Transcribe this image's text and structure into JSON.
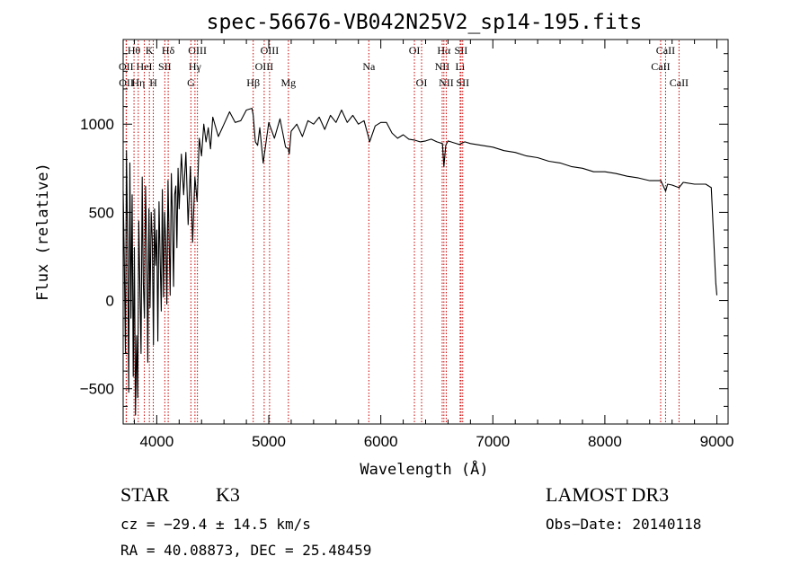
{
  "chart_data": {
    "type": "line",
    "title": "spec-56676-VB042N25V2_sp14-195.fits",
    "xlabel": "Wavelength (Å)",
    "ylabel": "Flux (relative)",
    "xlim": [
      3700,
      9100
    ],
    "ylim": [
      -700,
      1480
    ],
    "xticks": [
      4000,
      5000,
      6000,
      7000,
      8000,
      9000
    ],
    "yticks": [
      -500,
      0,
      500,
      1000
    ],
    "series": [
      {
        "name": "spectrum",
        "x": [
          3700,
          3710,
          3720,
          3730,
          3740,
          3750,
          3760,
          3770,
          3780,
          3790,
          3800,
          3810,
          3820,
          3830,
          3840,
          3850,
          3860,
          3870,
          3880,
          3890,
          3900,
          3910,
          3920,
          3930,
          3940,
          3950,
          3960,
          3970,
          3980,
          3990,
          4000,
          4010,
          4020,
          4030,
          4040,
          4050,
          4060,
          4070,
          4080,
          4090,
          4100,
          4110,
          4120,
          4130,
          4140,
          4150,
          4160,
          4170,
          4180,
          4190,
          4200,
          4220,
          4240,
          4260,
          4280,
          4300,
          4320,
          4340,
          4360,
          4380,
          4400,
          4420,
          4440,
          4460,
          4480,
          4500,
          4550,
          4600,
          4650,
          4700,
          4750,
          4800,
          4850,
          4861,
          4880,
          4900,
          4920,
          4950,
          5000,
          5050,
          5100,
          5150,
          5175,
          5183,
          5200,
          5250,
          5300,
          5350,
          5400,
          5450,
          5500,
          5550,
          5600,
          5650,
          5700,
          5750,
          5800,
          5850,
          5893,
          5900,
          5950,
          6000,
          6050,
          6100,
          6150,
          6200,
          6250,
          6300,
          6350,
          6400,
          6450,
          6500,
          6550,
          6563,
          6580,
          6600,
          6650,
          6700,
          6750,
          6800,
          6900,
          7000,
          7100,
          7200,
          7300,
          7400,
          7500,
          7600,
          7700,
          7800,
          7900,
          8000,
          8100,
          8200,
          8300,
          8400,
          8500,
          8542,
          8560,
          8600,
          8662,
          8700,
          8800,
          8900,
          8950,
          8990,
          9000
        ],
        "y": [
          620,
          250,
          -300,
          850,
          300,
          -520,
          780,
          -100,
          600,
          -430,
          300,
          -650,
          -200,
          -550,
          450,
          50,
          -300,
          700,
          100,
          -100,
          650,
          300,
          -350,
          520,
          -40,
          500,
          350,
          -250,
          520,
          200,
          400,
          -230,
          560,
          250,
          -60,
          630,
          20,
          500,
          330,
          -20,
          680,
          360,
          30,
          720,
          480,
          80,
          600,
          650,
          300,
          750,
          520,
          830,
          600,
          840,
          430,
          760,
          330,
          700,
          560,
          920,
          820,
          1000,
          900,
          980,
          860,
          1040,
          930,
          1000,
          1070,
          1010,
          1020,
          1080,
          1090,
          1050,
          900,
          880,
          980,
          780,
          1010,
          920,
          1030,
          870,
          860,
          830,
          960,
          1000,
          930,
          1020,
          1000,
          1040,
          970,
          1050,
          1010,
          1080,
          1010,
          1050,
          1000,
          1020,
          920,
          900,
          990,
          1010,
          1010,
          950,
          920,
          940,
          915,
          910,
          900,
          905,
          915,
          900,
          890,
          760,
          880,
          905,
          895,
          885,
          900,
          890,
          880,
          870,
          850,
          840,
          820,
          810,
          790,
          780,
          760,
          750,
          730,
          730,
          720,
          705,
          695,
          680,
          680,
          620,
          660,
          655,
          640,
          670,
          660,
          660,
          640,
          100,
          30
        ]
      }
    ],
    "line_markers": [
      {
        "label": "Hθ",
        "wavelength": 3797,
        "row": 1
      },
      {
        "label": "OII",
        "wavelength": 3727,
        "row": 2
      },
      {
        "label": "OII",
        "wavelength": 3729,
        "row": 3
      },
      {
        "label": "HeI",
        "wavelength": 3889,
        "row": 2
      },
      {
        "label": "Hη",
        "wavelength": 3835,
        "row": 3
      },
      {
        "label": "K",
        "wavelength": 3934,
        "row": 1
      },
      {
        "label": "SII",
        "wavelength": 4072,
        "row": 2
      },
      {
        "label": "H",
        "wavelength": 3969,
        "row": 3
      },
      {
        "label": "Hδ",
        "wavelength": 4102,
        "row": 1
      },
      {
        "label": "OIII",
        "wavelength": 4363,
        "row": 1
      },
      {
        "label": "Hγ",
        "wavelength": 4341,
        "row": 2
      },
      {
        "label": "G",
        "wavelength": 4305,
        "row": 3
      },
      {
        "label": "OIII",
        "wavelength": 5007,
        "row": 1
      },
      {
        "label": "OIII",
        "wavelength": 4959,
        "row": 2
      },
      {
        "label": "Hβ",
        "wavelength": 4861,
        "row": 3
      },
      {
        "label": "Mg",
        "wavelength": 5175,
        "row": 3
      },
      {
        "label": "Na",
        "wavelength": 5893,
        "row": 2
      },
      {
        "label": "OI",
        "wavelength": 6300,
        "row": 1
      },
      {
        "label": "OI",
        "wavelength": 6364,
        "row": 3
      },
      {
        "label": "Hα",
        "wavelength": 6563,
        "row": 1
      },
      {
        "label": "NII",
        "wavelength": 6548,
        "row": 2
      },
      {
        "label": "NII",
        "wavelength": 6584,
        "row": 3
      },
      {
        "label": "SII",
        "wavelength": 6716,
        "row": 1
      },
      {
        "label": "Li",
        "wavelength": 6708,
        "row": 2
      },
      {
        "label": "SII",
        "wavelength": 6731,
        "row": 3
      },
      {
        "label": "CaII",
        "wavelength": 8542,
        "row": 1
      },
      {
        "label": "CaII",
        "wavelength": 8498,
        "row": 2
      },
      {
        "label": "CaII",
        "wavelength": 8662,
        "row": 3
      }
    ]
  },
  "info": {
    "object_class": "STAR",
    "subclass": "K3",
    "survey": "LAMOST DR3",
    "cz": "cz = −29.4 ± 14.5 km/s",
    "obs_date": "Obs−Date: 20140118",
    "coords": "RA =  40.08873, DEC =  25.48459"
  },
  "colors": {
    "line": "#000000",
    "marker": "#cc0000",
    "background": "#ffffff"
  }
}
